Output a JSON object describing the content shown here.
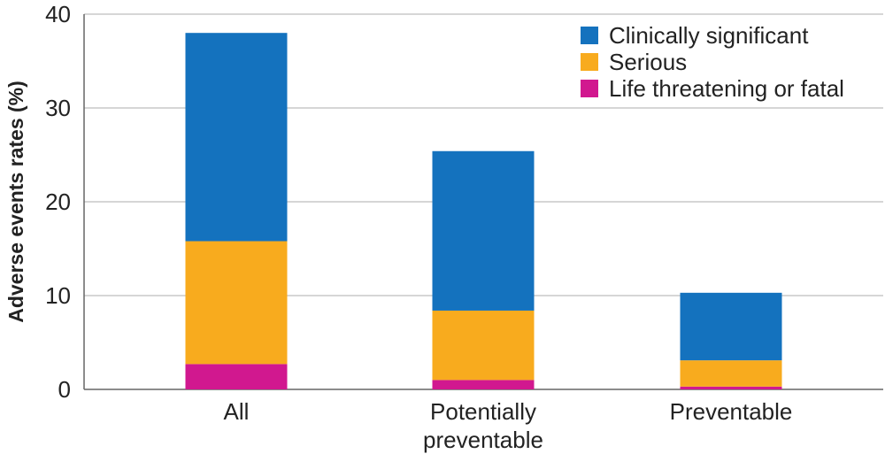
{
  "chart_data": {
    "type": "bar",
    "stacked": true,
    "title": "",
    "xlabel": "",
    "ylabel": "Adverse events rates (%)",
    "ylim": [
      0,
      40
    ],
    "yticks": [
      0,
      10,
      20,
      30,
      40
    ],
    "grid": true,
    "legend_position": "top-right",
    "categories": [
      [
        "All"
      ],
      [
        "Potentially",
        "preventable"
      ],
      [
        "Preventable"
      ]
    ],
    "series": [
      {
        "name": "Life threatening or fatal",
        "color": "#d1188f",
        "values": [
          2.7,
          1.0,
          0.3
        ]
      },
      {
        "name": "Serious",
        "color": "#f8ab1e",
        "values": [
          13.1,
          7.4,
          2.8
        ]
      },
      {
        "name": "Clinically significant",
        "color": "#1472be",
        "values": [
          22.2,
          17.0,
          7.2
        ]
      }
    ],
    "legend_order": [
      "Clinically significant",
      "Serious",
      "Life threatening or fatal"
    ]
  }
}
